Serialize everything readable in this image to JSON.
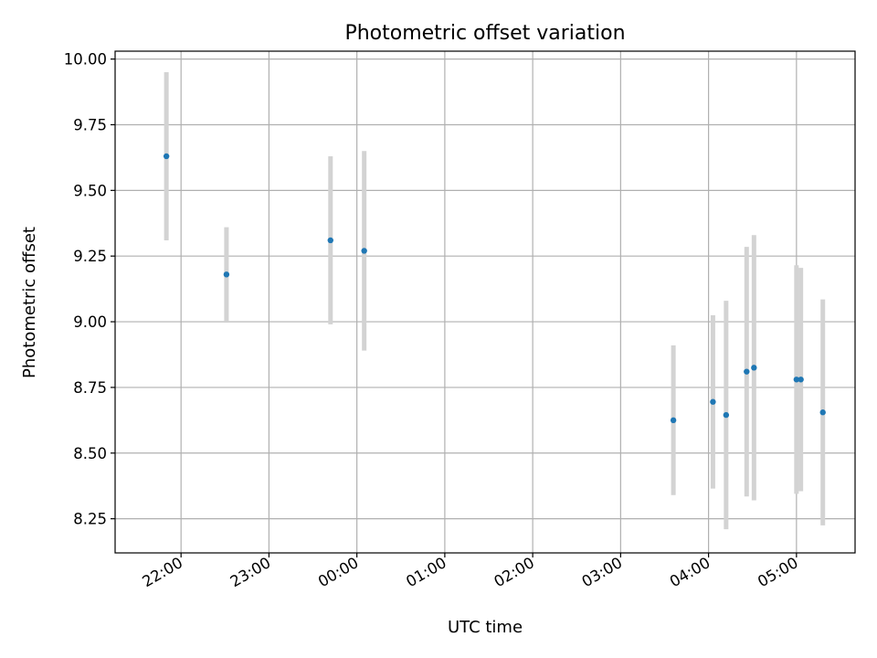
{
  "chart_data": {
    "type": "scatter",
    "title": "Photometric offset variation",
    "xlabel": "UTC time",
    "ylabel": "Photometric offset",
    "xlim": [
      "2023-01-01T21:15:00",
      "2023-01-02T05:40:00"
    ],
    "ylim": [
      8.12,
      10.03
    ],
    "grid": true,
    "x_ticks": [
      {
        "t": "2023-01-01T22:00:00",
        "label": "22:00"
      },
      {
        "t": "2023-01-01T23:00:00",
        "label": "23:00"
      },
      {
        "t": "2023-01-02T00:00:00",
        "label": "00:00"
      },
      {
        "t": "2023-01-02T01:00:00",
        "label": "01:00"
      },
      {
        "t": "2023-01-02T02:00:00",
        "label": "02:00"
      },
      {
        "t": "2023-01-02T03:00:00",
        "label": "03:00"
      },
      {
        "t": "2023-01-02T04:00:00",
        "label": "04:00"
      },
      {
        "t": "2023-01-02T05:00:00",
        "label": "05:00"
      }
    ],
    "y_ticks": [
      {
        "v": 8.25,
        "label": "8.25"
      },
      {
        "v": 8.5,
        "label": "8.50"
      },
      {
        "v": 8.75,
        "label": "8.75"
      },
      {
        "v": 9.0,
        "label": "9.00"
      },
      {
        "v": 9.25,
        "label": "9.25"
      },
      {
        "v": 9.5,
        "label": "9.50"
      },
      {
        "v": 9.75,
        "label": "9.75"
      },
      {
        "v": 10.0,
        "label": "10.00"
      }
    ],
    "series": [
      {
        "marker_color": "#1f77b4",
        "errorbar_color": "#d3d3d3",
        "points": [
          {
            "t": "2023-01-01T21:50:00",
            "y": 9.63,
            "err": 0.32
          },
          {
            "t": "2023-01-01T22:31:00",
            "y": 9.18,
            "err": 0.18
          },
          {
            "t": "2023-01-01T23:42:00",
            "y": 9.31,
            "err": 0.32
          },
          {
            "t": "2023-01-02T00:05:00",
            "y": 9.27,
            "err": 0.38
          },
          {
            "t": "2023-01-02T03:36:00",
            "y": 8.625,
            "err": 0.285
          },
          {
            "t": "2023-01-02T04:03:00",
            "y": 8.695,
            "err": 0.33
          },
          {
            "t": "2023-01-02T04:12:00",
            "y": 8.645,
            "err": 0.435
          },
          {
            "t": "2023-01-02T04:26:00",
            "y": 8.81,
            "err": 0.475
          },
          {
            "t": "2023-01-02T04:31:00",
            "y": 8.825,
            "err": 0.505
          },
          {
            "t": "2023-01-02T05:00:00",
            "y": 8.78,
            "err": 0.435
          },
          {
            "t": "2023-01-02T05:03:00",
            "y": 8.78,
            "err": 0.425
          },
          {
            "t": "2023-01-02T05:18:00",
            "y": 8.655,
            "err": 0.43
          }
        ]
      }
    ]
  }
}
